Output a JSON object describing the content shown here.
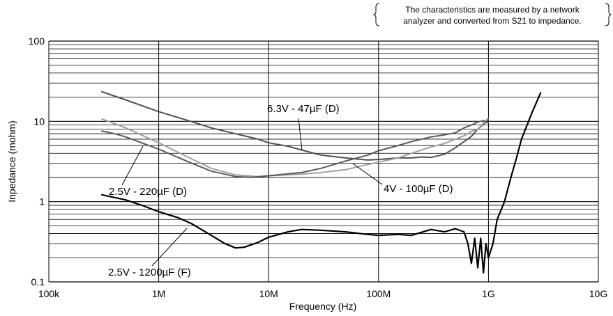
{
  "chart_data": {
    "type": "line",
    "xlabel": "Frequency (Hz)",
    "ylabel": "Inpedance (mohm)",
    "x_scale": "log",
    "y_scale": "log",
    "xlim": [
      100000,
      10000000000
    ],
    "ylim": [
      0.1,
      100
    ],
    "x_ticks": [
      {
        "value": 100000,
        "label": "100k"
      },
      {
        "value": 1000000,
        "label": "1M"
      },
      {
        "value": 10000000,
        "label": "10M"
      },
      {
        "value": 100000000,
        "label": "100M"
      },
      {
        "value": 1000000000,
        "label": "1G"
      },
      {
        "value": 10000000000,
        "label": "10G"
      }
    ],
    "y_ticks": [
      {
        "value": 0.1,
        "label": "0.1"
      },
      {
        "value": 1,
        "label": "1"
      },
      {
        "value": 10,
        "label": "10"
      },
      {
        "value": 100,
        "label": "100"
      }
    ],
    "grid": true,
    "note": [
      "The characteristics are measured by a network",
      "analyzer and converted from S21 to impedance."
    ],
    "series": [
      {
        "name": "6.3V - 47µF (D)",
        "color": "#505050",
        "points": [
          [
            300000,
            23.5
          ],
          [
            500000,
            18.5
          ],
          [
            1000000,
            13.2
          ],
          [
            2000000,
            9.9
          ],
          [
            3000000,
            8.3
          ],
          [
            5000000,
            7.0
          ],
          [
            8000000,
            6.0
          ],
          [
            10000000,
            5.4
          ],
          [
            15000000,
            4.9
          ],
          [
            20000000,
            4.4
          ],
          [
            30000000,
            3.8
          ],
          [
            50000000,
            3.5
          ],
          [
            80000000,
            3.3
          ],
          [
            100000000,
            3.35
          ],
          [
            150000000,
            3.5
          ],
          [
            200000000,
            3.5
          ],
          [
            250000000,
            3.6
          ],
          [
            300000000,
            3.55
          ],
          [
            400000000,
            3.9
          ],
          [
            500000000,
            4.7
          ],
          [
            600000000,
            5.6
          ],
          [
            700000000,
            6.5
          ],
          [
            800000000,
            8.0
          ],
          [
            900000000,
            9.2
          ],
          [
            1000000000,
            10.5
          ]
        ]
      },
      {
        "name": "4V - 100µF (D)",
        "color": "#a0a0a0",
        "points": [
          [
            300000,
            10.8
          ],
          [
            500000,
            8.3
          ],
          [
            1000000,
            5.4
          ],
          [
            2000000,
            3.4
          ],
          [
            3000000,
            2.6
          ],
          [
            5000000,
            2.15
          ],
          [
            8000000,
            2.05
          ],
          [
            10000000,
            2.1
          ],
          [
            20000000,
            2.2
          ],
          [
            30000000,
            2.3
          ],
          [
            50000000,
            2.5
          ],
          [
            80000000,
            2.9
          ],
          [
            100000000,
            3.1
          ],
          [
            150000000,
            3.5
          ],
          [
            200000000,
            4.0
          ],
          [
            300000000,
            4.8
          ],
          [
            400000000,
            5.3
          ],
          [
            500000000,
            6.0
          ],
          [
            600000000,
            6.6
          ],
          [
            700000000,
            7.5
          ],
          [
            800000000,
            8.0
          ],
          [
            900000000,
            9.5
          ],
          [
            1000000000,
            11.0
          ]
        ]
      },
      {
        "name": "2.5V - 220µF (D)",
        "color": "#5a5a5a",
        "points": [
          [
            300000,
            7.6
          ],
          [
            400000,
            7.0
          ],
          [
            500000,
            6.4
          ],
          [
            1000000,
            4.5
          ],
          [
            2000000,
            3.0
          ],
          [
            3000000,
            2.4
          ],
          [
            5000000,
            2.05
          ],
          [
            7000000,
            2.0
          ],
          [
            10000000,
            2.1
          ],
          [
            20000000,
            2.3
          ],
          [
            30000000,
            2.6
          ],
          [
            50000000,
            3.2
          ],
          [
            80000000,
            3.8
          ],
          [
            100000000,
            4.3
          ],
          [
            150000000,
            5.0
          ],
          [
            200000000,
            5.6
          ],
          [
            300000000,
            6.4
          ],
          [
            400000000,
            6.8
          ],
          [
            500000000,
            7.2
          ],
          [
            600000000,
            8.3
          ],
          [
            700000000,
            9.0
          ],
          [
            800000000,
            9.8
          ],
          [
            900000000,
            10.2
          ],
          [
            1000000000,
            9.5
          ]
        ]
      },
      {
        "name": "2.5V - 1200µF (F)",
        "color": "#000000",
        "points": [
          [
            300000,
            1.22
          ],
          [
            500000,
            1.05
          ],
          [
            700000,
            0.9
          ],
          [
            1000000,
            0.75
          ],
          [
            1500000,
            0.63
          ],
          [
            2000000,
            0.53
          ],
          [
            3000000,
            0.38
          ],
          [
            4000000,
            0.3
          ],
          [
            5000000,
            0.265
          ],
          [
            6000000,
            0.27
          ],
          [
            8000000,
            0.31
          ],
          [
            10000000,
            0.36
          ],
          [
            15000000,
            0.42
          ],
          [
            20000000,
            0.45
          ],
          [
            30000000,
            0.44
          ],
          [
            50000000,
            0.42
          ],
          [
            80000000,
            0.39
          ],
          [
            100000000,
            0.38
          ],
          [
            150000000,
            0.39
          ],
          [
            200000000,
            0.38
          ],
          [
            300000000,
            0.45
          ],
          [
            400000000,
            0.42
          ],
          [
            500000000,
            0.46
          ],
          [
            600000000,
            0.42
          ],
          [
            650000000,
            0.3
          ],
          [
            700000000,
            0.17
          ],
          [
            750000000,
            0.35
          ],
          [
            800000000,
            0.15
          ],
          [
            850000000,
            0.35
          ],
          [
            900000000,
            0.13
          ],
          [
            950000000,
            0.3
          ],
          [
            1000000000,
            0.2
          ],
          [
            1100000000,
            0.3
          ],
          [
            1200000000,
            0.6
          ],
          [
            1400000000,
            1.0
          ],
          [
            1600000000,
            2.0
          ],
          [
            1800000000,
            3.5
          ],
          [
            2000000000,
            6.0
          ],
          [
            2500000000,
            13.0
          ],
          [
            3000000000,
            23.0
          ]
        ]
      }
    ]
  }
}
